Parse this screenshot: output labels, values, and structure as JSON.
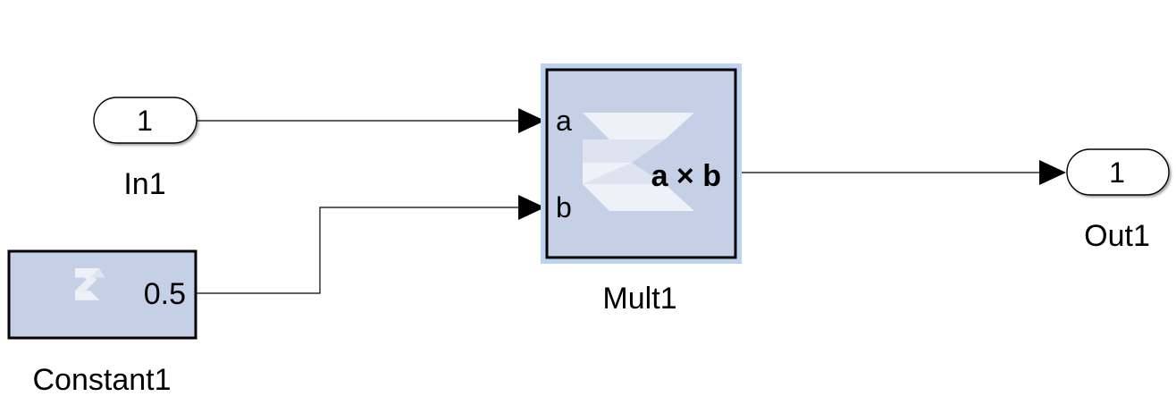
{
  "model": {
    "colors": {
      "block_fill": "#c5d0e6",
      "block_border": "#000000",
      "selection_halo": "#bcd3f2",
      "wire": "#000000",
      "port_fill": "#ffffff",
      "logo_light": "#eef1f8",
      "logo_mid": "#dde3ef"
    },
    "blocks": {
      "inport": {
        "name": "In1",
        "number": "1"
      },
      "constant": {
        "name": "Constant1",
        "value": "0.5",
        "icon": "xilinx-logo-icon"
      },
      "mult": {
        "name": "Mult1",
        "port_a": "a",
        "port_b": "b",
        "operation": "a × b",
        "icon": "xilinx-logo-icon",
        "selected": true
      },
      "outport": {
        "name": "Out1",
        "number": "1"
      }
    }
  }
}
